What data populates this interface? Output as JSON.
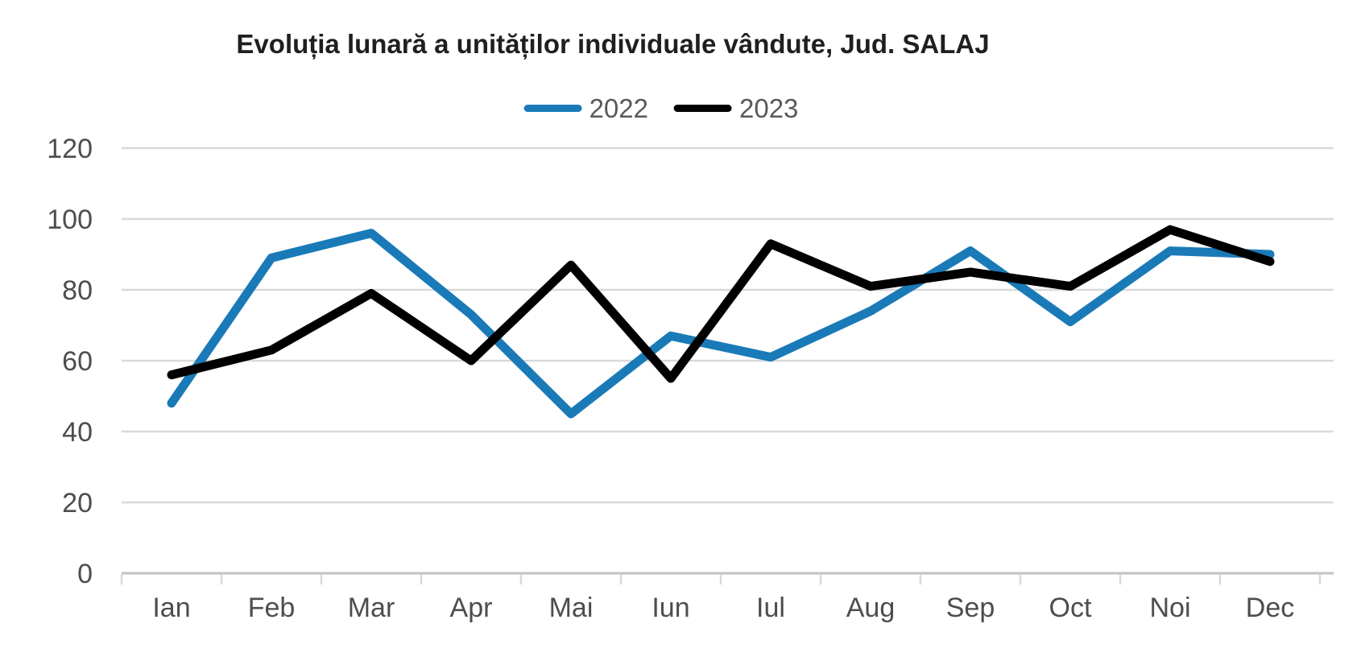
{
  "title": "Evoluția lunară a unităților individuale vândute, Jud. SALAJ",
  "legend": [
    {
      "label": "2022",
      "color": "#1A7AB8"
    },
    {
      "label": "2023",
      "color": "#000000"
    }
  ],
  "chart_data": {
    "type": "line",
    "title": "Evoluția lunară a unităților individuale vândute, Jud. SALAJ",
    "categories": [
      "Ian",
      "Feb",
      "Mar",
      "Apr",
      "Mai",
      "Iun",
      "Iul",
      "Aug",
      "Sep",
      "Oct",
      "Noi",
      "Dec"
    ],
    "series": [
      {
        "name": "2022",
        "color": "#1A7AB8",
        "values": [
          48,
          89,
          96,
          73,
          45,
          67,
          61,
          74,
          91,
          71,
          91,
          90
        ]
      },
      {
        "name": "2023",
        "color": "#000000",
        "values": [
          56,
          63,
          79,
          60,
          87,
          55,
          93,
          81,
          85,
          81,
          97,
          88
        ]
      }
    ],
    "xlabel": "",
    "ylabel": "",
    "ylim": [
      0,
      120
    ],
    "yticks": [
      0,
      20,
      40,
      60,
      80,
      100,
      120
    ],
    "gridlines": "horizontal",
    "legend_position": "top-center"
  },
  "colors": {
    "grid": "#d9d9d9",
    "axis": "#c2c2c2",
    "tick": "#d9d9d9",
    "tick_label": "#4d4d4d",
    "legend_text": "#595959",
    "title_text": "#1f1f1f",
    "background": "#ffffff"
  }
}
